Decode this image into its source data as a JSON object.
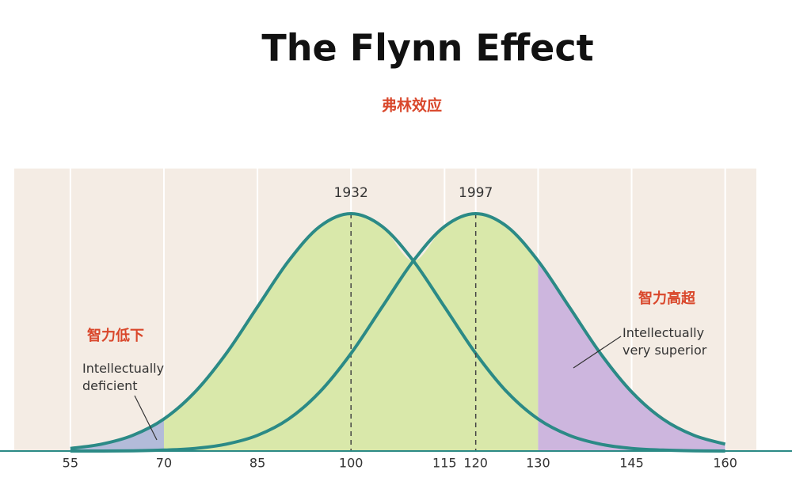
{
  "chart_data": {
    "type": "line",
    "title": "The Flynn Effect",
    "subtitle": "弗林效应",
    "x": [
      55,
      60,
      65,
      70,
      75,
      80,
      85,
      90,
      95,
      100,
      105,
      110,
      115,
      120,
      125,
      130,
      135,
      140,
      145,
      150,
      155,
      160
    ],
    "series": [
      {
        "name": "1932",
        "color": "#2b8a86",
        "mean": 100,
        "values": [
          0.011,
          0.029,
          0.066,
          0.135,
          0.249,
          0.411,
          0.607,
          0.801,
          0.946,
          1,
          0.946,
          0.801,
          0.607,
          0.411,
          0.249,
          0.135,
          0.066,
          0.029,
          0.011,
          0.004,
          0.001,
          0
        ]
      },
      {
        "name": "1997",
        "color": "#2b8a86",
        "mean": 120,
        "values": [
          0,
          0,
          0.001,
          0.004,
          0.011,
          0.029,
          0.066,
          0.135,
          0.249,
          0.411,
          0.607,
          0.801,
          0.946,
          1,
          0.946,
          0.801,
          0.607,
          0.411,
          0.249,
          0.135,
          0.066,
          0.029
        ]
      }
    ],
    "xlim": [
      46,
      165
    ],
    "ylim": [
      0,
      1
    ],
    "xticks": [
      55,
      70,
      85,
      100,
      115,
      120,
      130,
      145,
      160
    ],
    "grid": true,
    "thresholds": [
      70,
      130
    ],
    "region_colors": [
      "#b3bbd9",
      "#d9e8aa",
      "#cdb6de"
    ],
    "annotations": [
      {
        "label": "智力低下",
        "text": "Intellectually deficient"
      },
      {
        "label": "智力高超",
        "text": "Intellectually very superior"
      }
    ]
  }
}
